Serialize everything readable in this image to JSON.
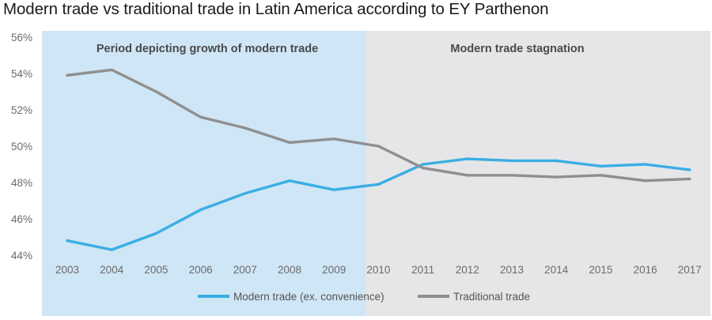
{
  "title": "Modern trade vs traditional trade in Latin America according to EY Parthenon",
  "colors": {
    "region_growth": "#cfe6f6",
    "region_stagnation": "#e6e6e8",
    "modern": "#3aaee3",
    "traditional": "#8f8f91"
  },
  "chart_data": {
    "type": "line",
    "title": "Modern trade vs traditional trade in Latin America according to EY Parthenon",
    "xlabel": "",
    "ylabel": "",
    "ylim": [
      44,
      56
    ],
    "y_ticks": [
      56,
      54,
      52,
      50,
      48,
      46,
      44
    ],
    "y_tick_labels": [
      "56%",
      "54%",
      "52%",
      "50%",
      "48%",
      "46%",
      "44%"
    ],
    "categories": [
      "2003",
      "2004",
      "2005",
      "2006",
      "2007",
      "2008",
      "2009",
      "2010",
      "2011",
      "2012",
      "2013",
      "2014",
      "2015",
      "2016",
      "2017"
    ],
    "series": [
      {
        "name": "Modern trade (ex. convenience)",
        "color": "#3aaee3",
        "values": [
          44.8,
          44.3,
          45.2,
          46.5,
          47.4,
          48.1,
          47.6,
          47.9,
          49.0,
          49.3,
          49.2,
          49.2,
          48.9,
          49.0,
          48.7
        ]
      },
      {
        "name": "Traditional trade",
        "color": "#8f8f91",
        "values": [
          53.9,
          54.2,
          53.0,
          51.6,
          51.0,
          50.2,
          50.4,
          50.0,
          48.8,
          48.4,
          48.4,
          48.3,
          48.4,
          48.1,
          48.2
        ]
      }
    ],
    "regions": [
      {
        "label": "Period depicting growth of modern trade",
        "from": "2003",
        "to": "2009"
      },
      {
        "label": "Modern trade stagnation",
        "from": "2010",
        "to": "2017"
      }
    ],
    "legend_position": "bottom"
  }
}
